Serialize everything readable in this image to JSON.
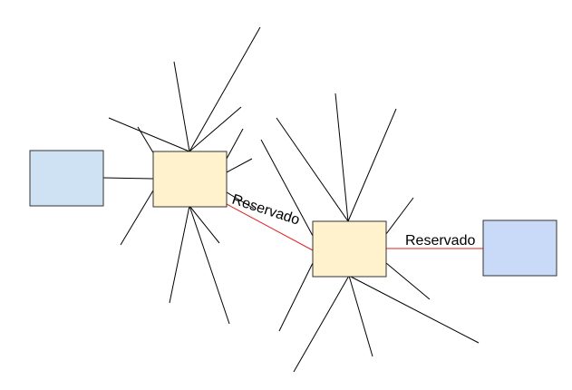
{
  "diagram": {
    "colors": {
      "background": "#ffffff",
      "line": "#000000",
      "reserved_link": "#e0201e",
      "node_fill": "#fff2cc",
      "endpoint_left_fill": "#cfe2f3",
      "endpoint_right_fill": "#c9daf8",
      "box_stroke": "#333333"
    },
    "nodes": [
      {
        "id": "endpoint-left",
        "kind": "endpoint"
      },
      {
        "id": "hub-1",
        "kind": "hub"
      },
      {
        "id": "hub-2",
        "kind": "hub"
      },
      {
        "id": "endpoint-right",
        "kind": "endpoint"
      }
    ],
    "links": [
      {
        "from": "endpoint-left",
        "to": "hub-1",
        "label": ""
      },
      {
        "from": "hub-1",
        "to": "hub-2",
        "label": "Reservado"
      },
      {
        "from": "hub-2",
        "to": "endpoint-right",
        "label": "Reservado"
      }
    ]
  }
}
